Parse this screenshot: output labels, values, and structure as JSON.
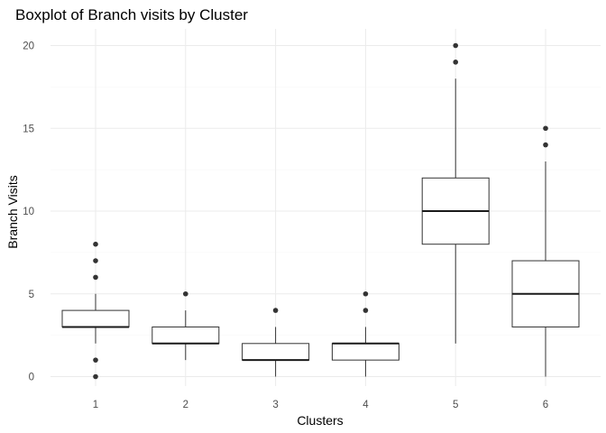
{
  "chart_data": {
    "type": "boxplot",
    "title": "Boxplot of Branch visits by Cluster",
    "xlabel": "Clusters",
    "ylabel": "Branch Visits",
    "categories": [
      "1",
      "2",
      "3",
      "4",
      "5",
      "6"
    ],
    "ylim": [
      -0.5,
      21
    ],
    "yticks": [
      0,
      5,
      10,
      15,
      20
    ],
    "grid": true,
    "legend": "none",
    "boxes": [
      {
        "category": "1",
        "whisker_low": 2,
        "q1": 3,
        "median": 3,
        "q3": 4,
        "whisker_high": 5,
        "outliers": [
          0,
          1,
          6,
          7,
          8
        ]
      },
      {
        "category": "2",
        "whisker_low": 1,
        "q1": 2,
        "median": 2,
        "q3": 3,
        "whisker_high": 4,
        "outliers": [
          5
        ]
      },
      {
        "category": "3",
        "whisker_low": 0,
        "q1": 1,
        "median": 1,
        "q3": 2,
        "whisker_high": 3,
        "outliers": [
          4
        ]
      },
      {
        "category": "4",
        "whisker_low": 0,
        "q1": 1,
        "median": 2,
        "q3": 2,
        "whisker_high": 3,
        "outliers": [
          4,
          5
        ]
      },
      {
        "category": "5",
        "whisker_low": 2,
        "q1": 8,
        "median": 10,
        "q3": 12,
        "whisker_high": 18,
        "outliers": [
          19,
          20
        ]
      },
      {
        "category": "6",
        "whisker_low": 0,
        "q1": 3,
        "median": 5,
        "q3": 7,
        "whisker_high": 13,
        "outliers": [
          14,
          15
        ]
      }
    ]
  }
}
